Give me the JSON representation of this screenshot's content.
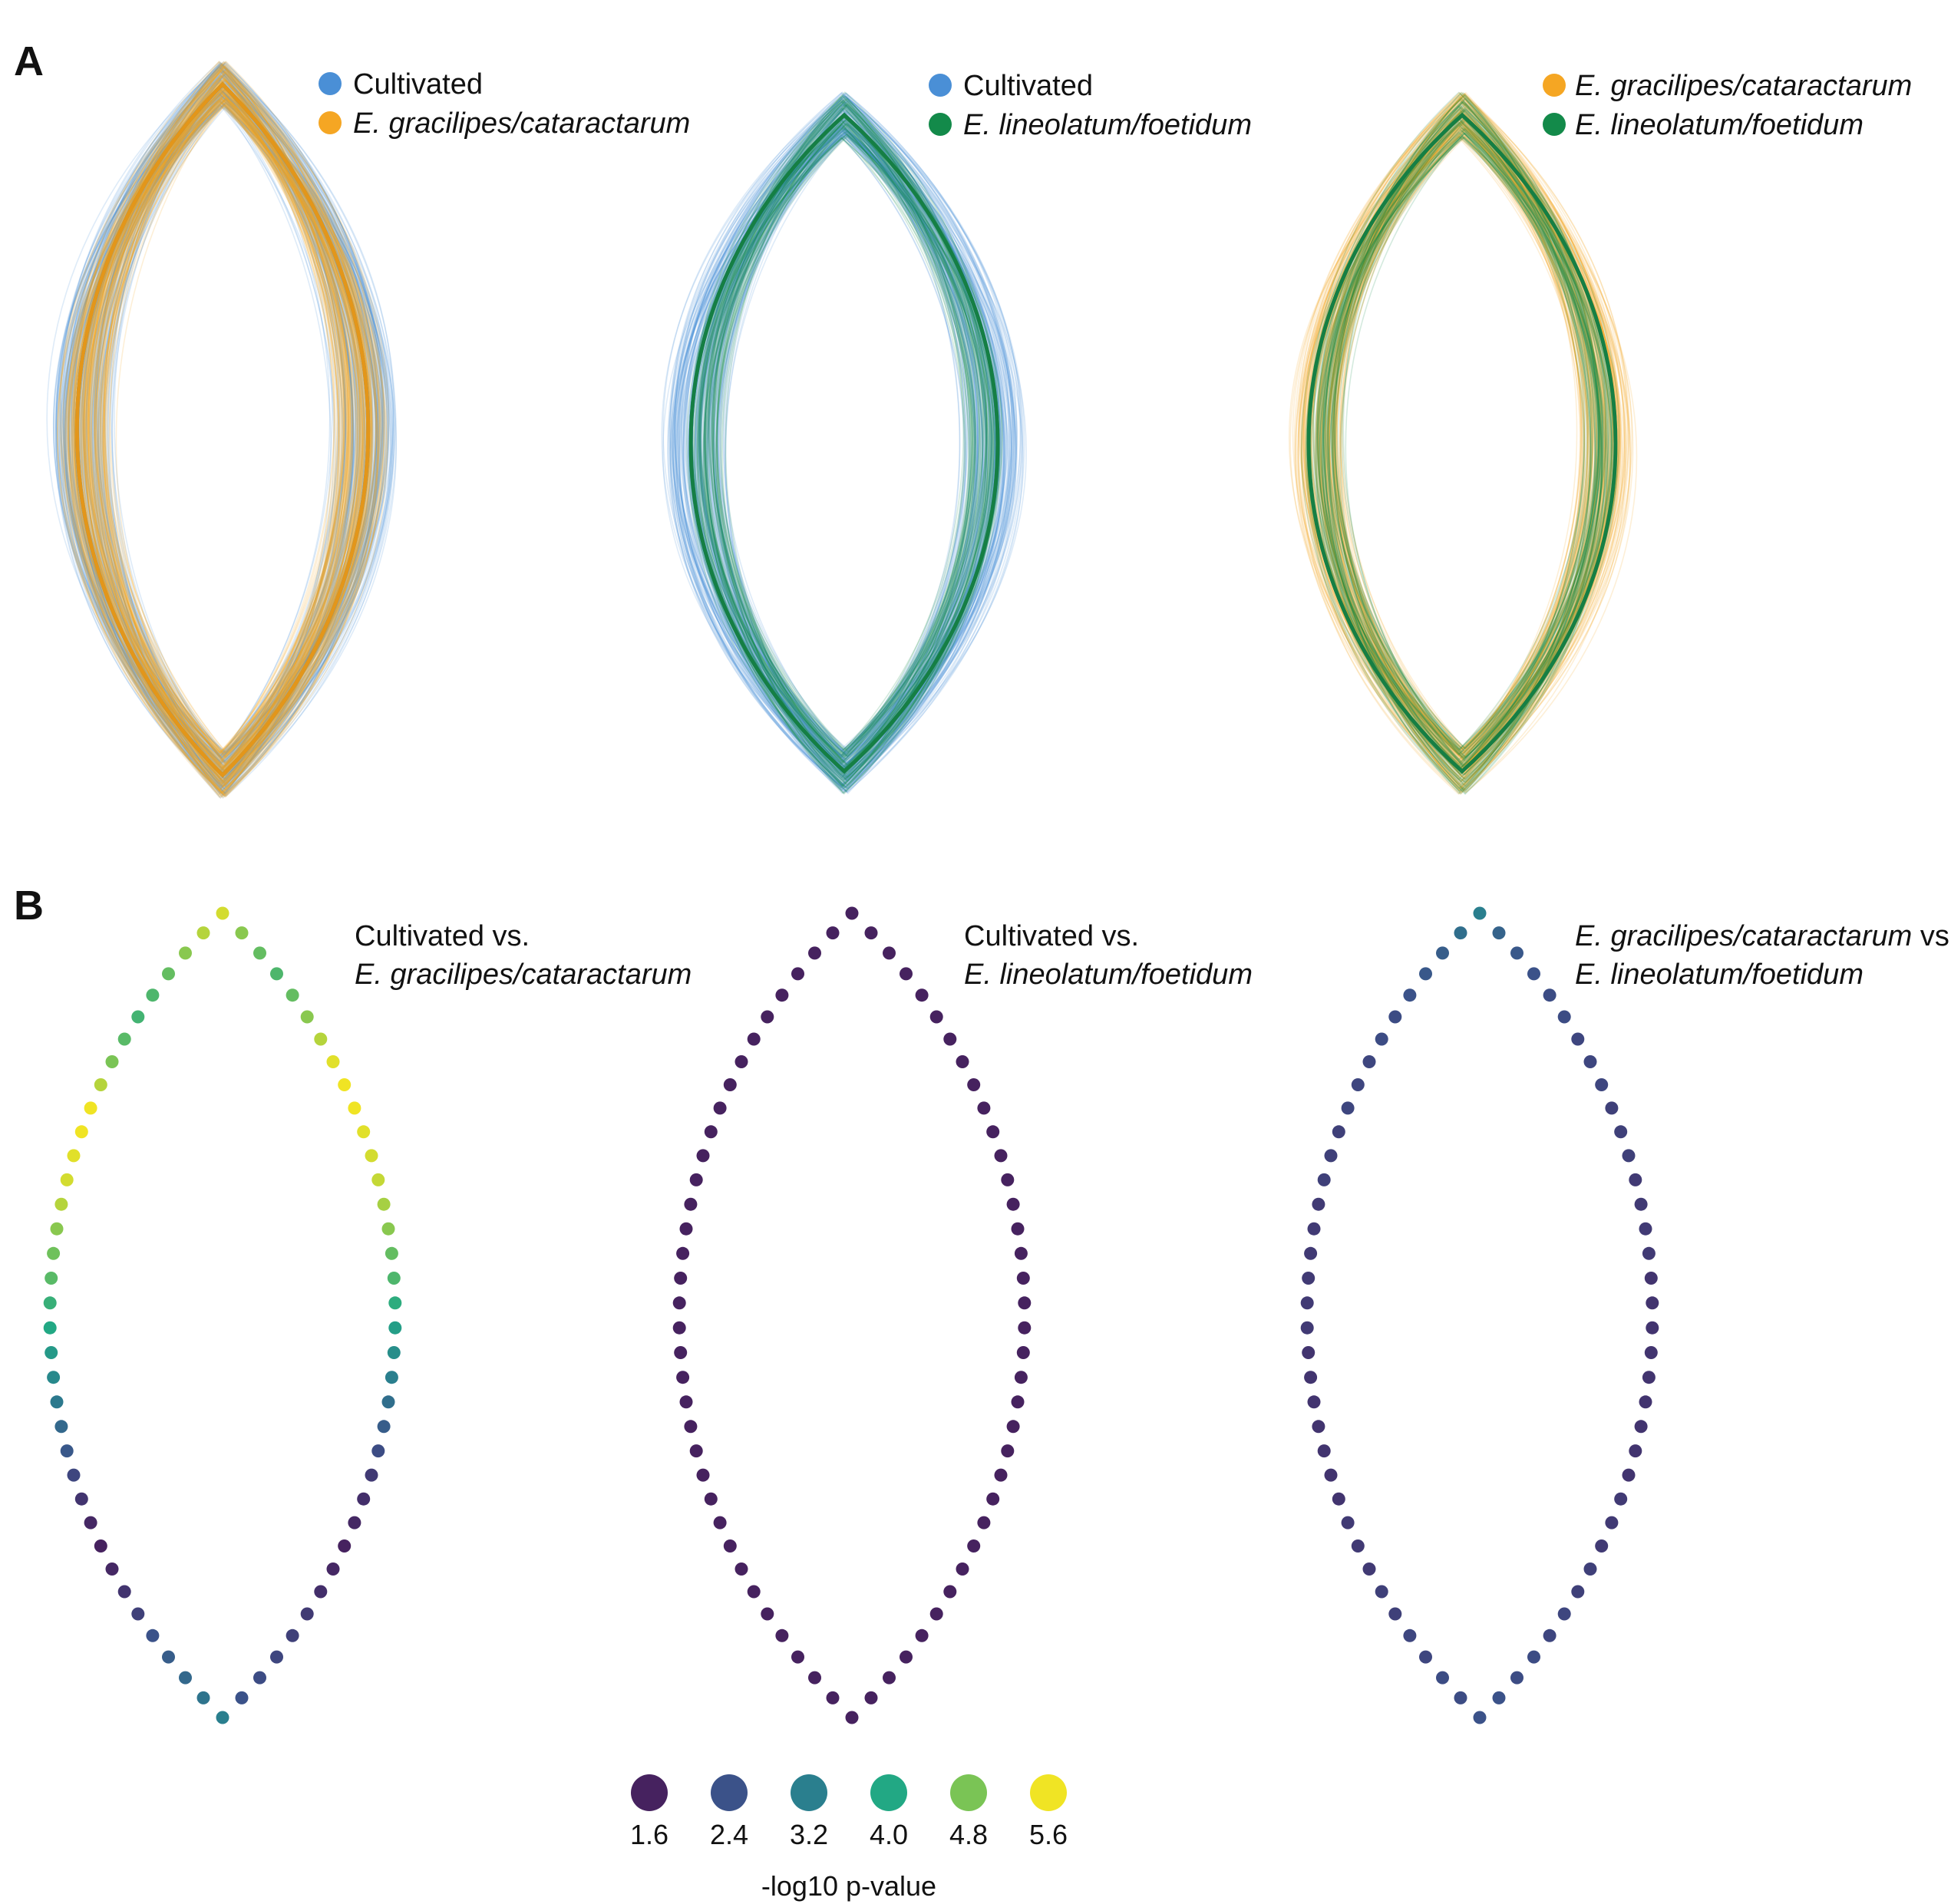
{
  "panels": {
    "a_label": "A",
    "b_label": "B"
  },
  "colors": {
    "cultivated": "#4a8fd6",
    "gracilipes": "#f5a623",
    "lineolatum": "#138a4a",
    "cultivated_mean": "#2f7fb8",
    "gracilipes_mean": "#e3961a",
    "lineolatum_mean": "#157f44"
  },
  "panel_a": [
    {
      "legend": [
        {
          "label": "Cultivated",
          "italic": false,
          "color": "#4a8fd6"
        },
        {
          "label": "E. gracilipes/cataractarum",
          "italic": true,
          "color": "#f5a623"
        }
      ],
      "groups": [
        "cultivated",
        "gracilipes"
      ]
    },
    {
      "legend": [
        {
          "label": "Cultivated",
          "italic": false,
          "color": "#4a8fd6"
        },
        {
          "label": "E. lineolatum/foetidum",
          "italic": true,
          "color": "#138a4a"
        }
      ],
      "groups": [
        "cultivated",
        "lineolatum"
      ]
    },
    {
      "legend": [
        {
          "label": "E. gracilipes/cataractarum",
          "italic": true,
          "color": "#f5a623"
        },
        {
          "label": "E. lineolatum/foetidum",
          "italic": true,
          "color": "#138a4a"
        }
      ],
      "groups": [
        "gracilipes",
        "lineolatum"
      ]
    }
  ],
  "panel_b": [
    {
      "title_line1": "Cultivated vs.",
      "title_line2": "E. gracilipes/cataractarum",
      "title_line1_italic_prefix": "",
      "pvalues_left": [
        5.4,
        5.2,
        4.9,
        4.6,
        4.4,
        4.3,
        4.5,
        4.8,
        5.2,
        5.6,
        5.6,
        5.5,
        5.4,
        5.2,
        4.9,
        4.7,
        4.5,
        4.2,
        4.0,
        3.7,
        3.4,
        3.1,
        2.8,
        2.5,
        2.2,
        1.9,
        1.7,
        1.6,
        1.7,
        1.9,
        2.1,
        2.4,
        2.6,
        2.8,
        3.0,
        3.2
      ],
      "pvalues_right": [
        5.2,
        4.9,
        4.6,
        4.4,
        4.6,
        4.9,
        5.2,
        5.5,
        5.6,
        5.6,
        5.5,
        5.4,
        5.3,
        5.1,
        4.9,
        4.6,
        4.4,
        4.1,
        3.8,
        3.5,
        3.2,
        2.9,
        2.6,
        2.3,
        2.0,
        1.8,
        1.7,
        1.6,
        1.7,
        1.8,
        2.0,
        2.1,
        2.2,
        2.3,
        2.4
      ]
    },
    {
      "title_line1": "Cultivated vs.",
      "title_line2": "E. lineolatum/foetidum",
      "title_line1_italic_prefix": "",
      "pvalues_left": [
        1.6
      ],
      "pvalues_right": [
        1.6
      ]
    },
    {
      "title_line1": " vs.",
      "title_line2": "E. lineolatum/foetidum",
      "title_line1_italic_prefix": "E. gracilipes/cataractarum",
      "pvalues_left": [
        3.2,
        2.9,
        2.6,
        2.5,
        2.4,
        2.3,
        2.3,
        2.2,
        2.2,
        2.2,
        2.1,
        2.1,
        2.1,
        2.0,
        2.0,
        2.0,
        2.0,
        2.0,
        2.0,
        1.9,
        1.9,
        1.9,
        1.9,
        1.9,
        1.9,
        1.9,
        2.0,
        2.0,
        2.0,
        2.1,
        2.1,
        2.2,
        2.2,
        2.3,
        2.3,
        2.4
      ],
      "pvalues_right": [
        3.0,
        2.7,
        2.5,
        2.4,
        2.3,
        2.3,
        2.2,
        2.2,
        2.2,
        2.1,
        2.1,
        2.1,
        2.0,
        2.0,
        2.0,
        2.0,
        1.9,
        1.9,
        1.9,
        1.9,
        1.9,
        1.9,
        1.9,
        1.9,
        1.9,
        2.0,
        2.0,
        2.0,
        2.1,
        2.1,
        2.2,
        2.2,
        2.3,
        2.3,
        2.4
      ]
    }
  ],
  "colorscale": {
    "title": "-log10 p-value",
    "ticks": [
      {
        "label": "1.6",
        "value": 1.6,
        "color": "#46225f"
      },
      {
        "label": "2.4",
        "value": 2.4,
        "color": "#3b5289"
      },
      {
        "label": "3.2",
        "value": 3.2,
        "color": "#2a7f8e"
      },
      {
        "label": "4.0",
        "value": 4.0,
        "color": "#22a884"
      },
      {
        "label": "4.8",
        "value": 4.8,
        "color": "#7ac455"
      },
      {
        "label": "5.6",
        "value": 5.6,
        "color": "#f0e424"
      }
    ]
  }
}
